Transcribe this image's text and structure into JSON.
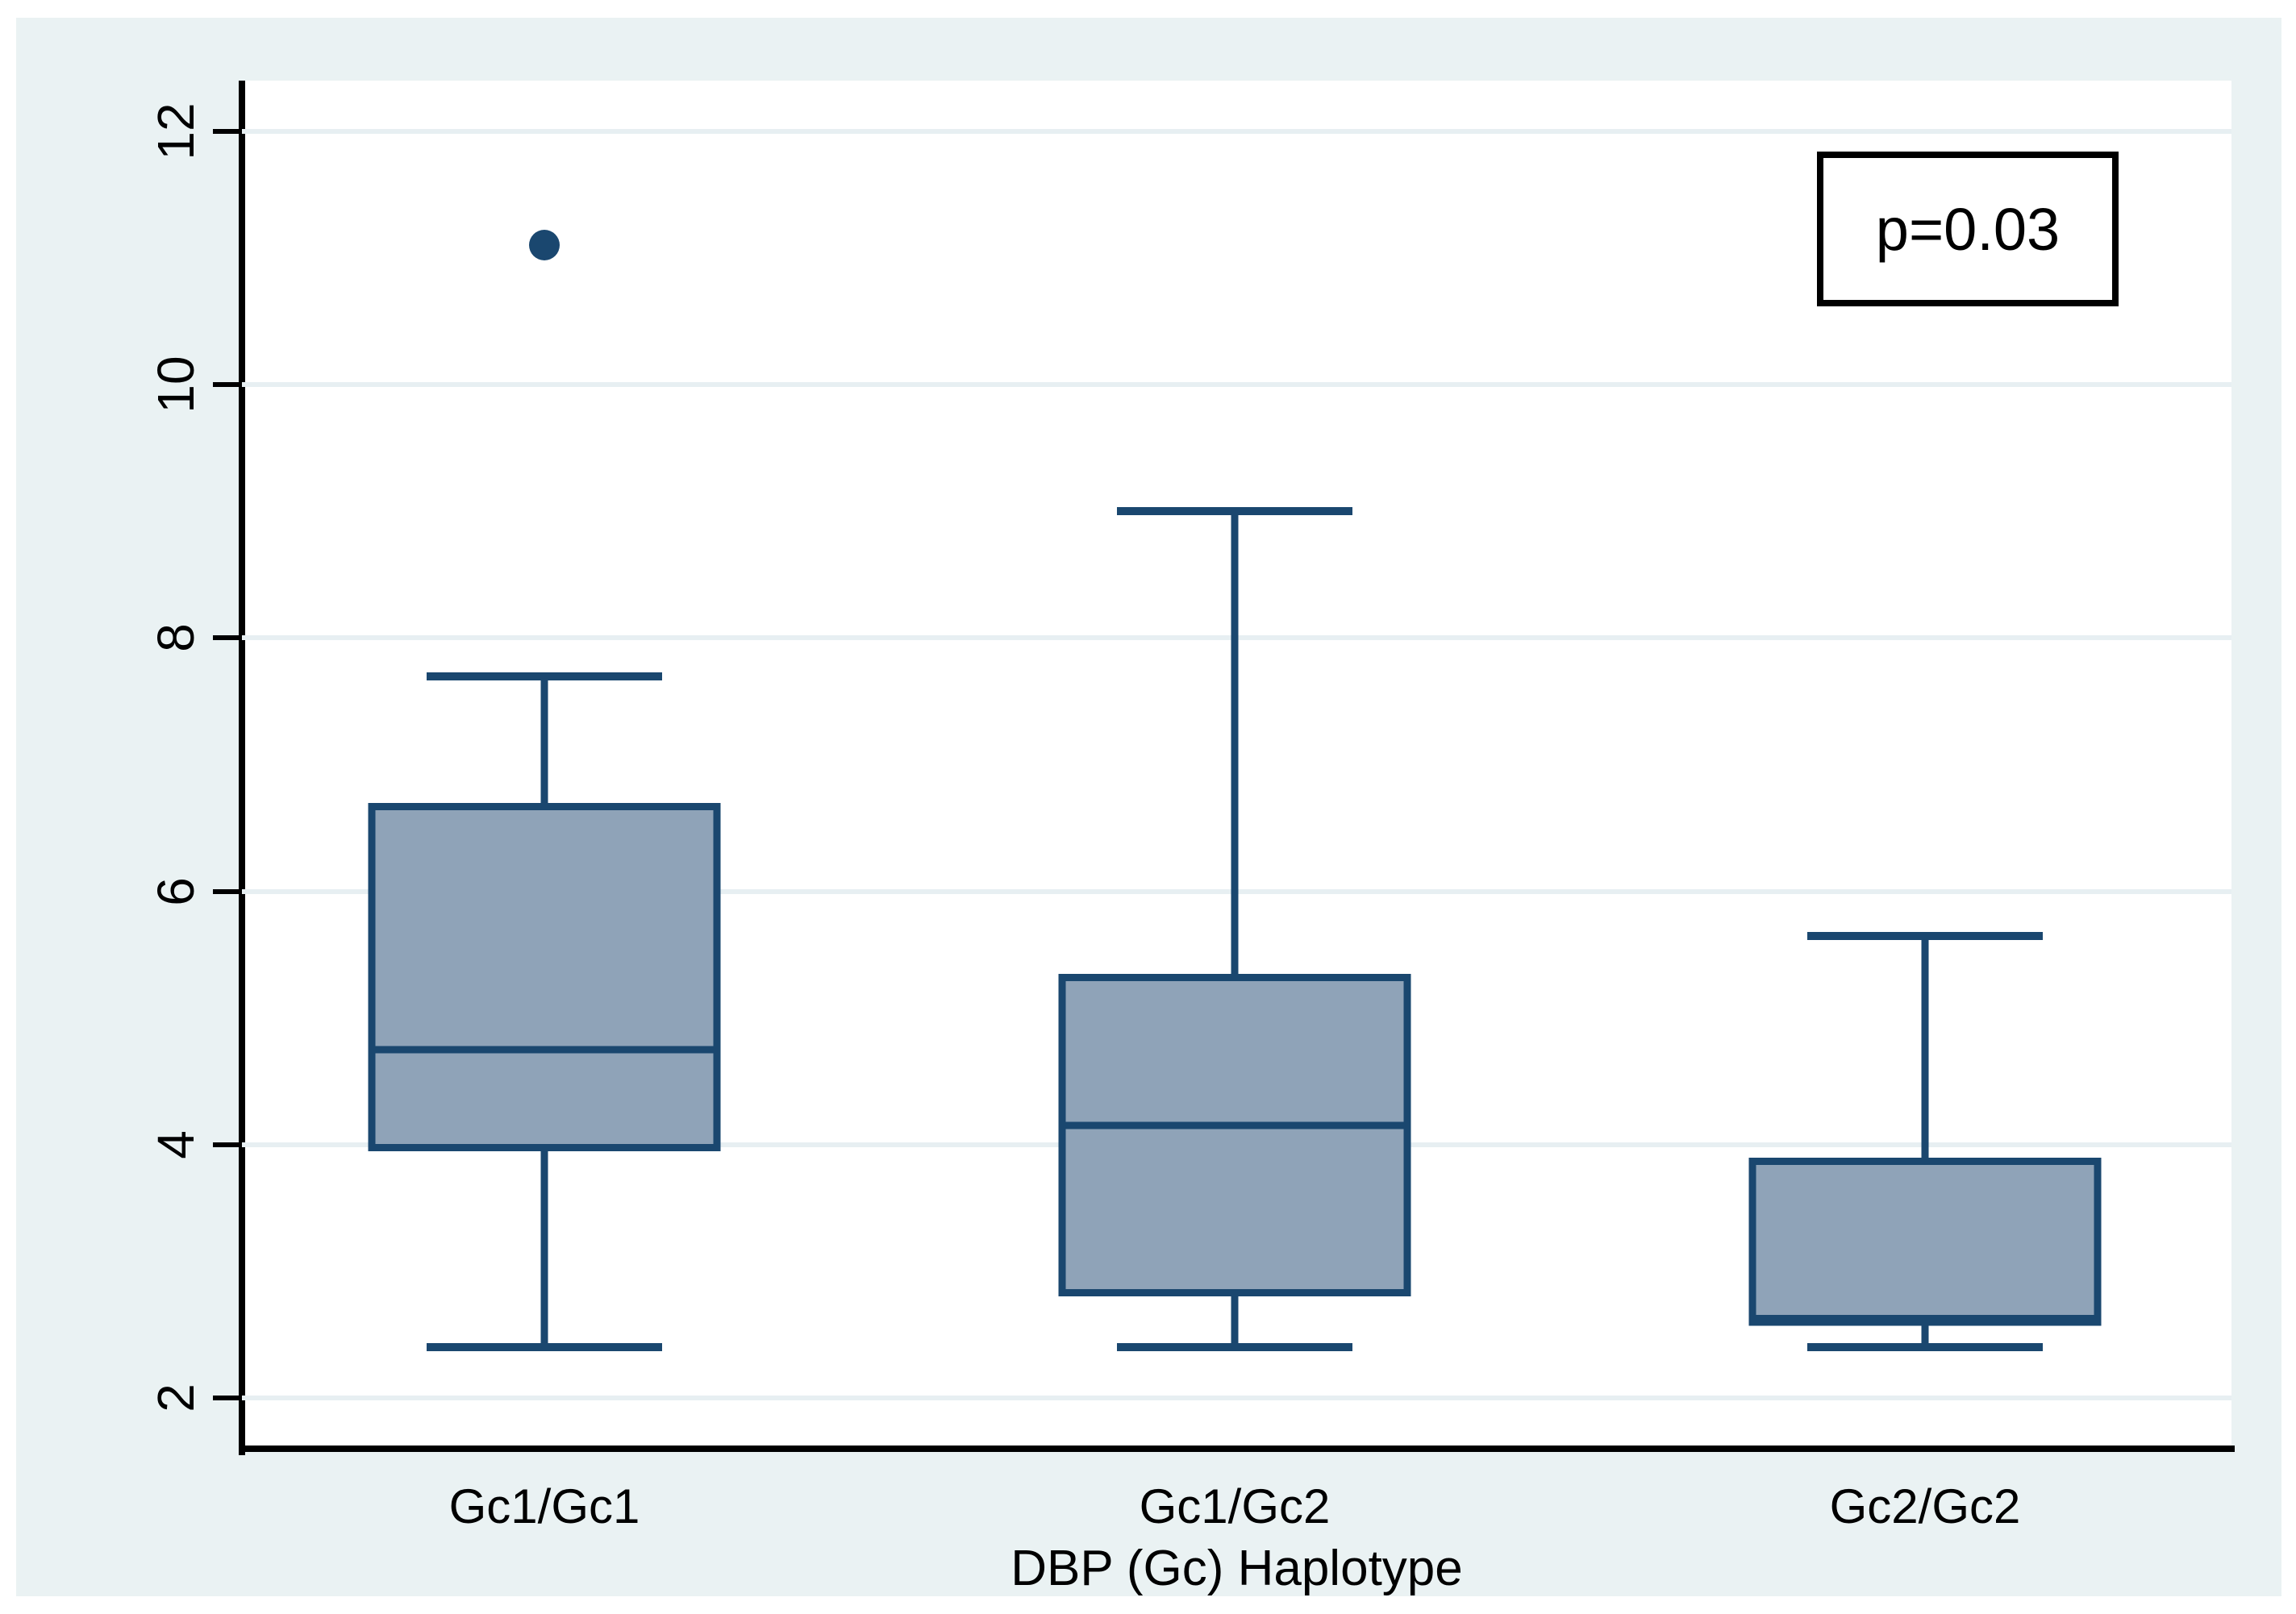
{
  "figure": {
    "annotation_label": "p=0.03",
    "x_axis_title": "DBP (Gc) Haplotype"
  },
  "chart_data": {
    "type": "box",
    "title": "",
    "xlabel": "DBP (Gc) Haplotype",
    "ylabel": "",
    "categories": [
      "Gc1/Gc1",
      "Gc1/Gc2",
      "Gc2/Gc2"
    ],
    "y_ticks": [
      2,
      4,
      6,
      8,
      10,
      12
    ],
    "ylim": [
      1.6,
      12.4
    ],
    "grid": true,
    "legend_position": "none",
    "annotation": "p=0.03",
    "series": [
      {
        "name": "Gc1/Gc1",
        "whisker_low": 2.4,
        "q1": 3.95,
        "median": 4.75,
        "q3": 6.7,
        "whisker_high": 7.7,
        "outliers": [
          11.1
        ]
      },
      {
        "name": "Gc1/Gc2",
        "whisker_low": 2.4,
        "q1": 2.8,
        "median": 4.15,
        "q3": 5.35,
        "whisker_high": 9.0,
        "outliers": []
      },
      {
        "name": "Gc2/Gc2",
        "whisker_low": 2.4,
        "q1": 2.6,
        "median": 2.6,
        "q3": 3.9,
        "whisker_high": 5.65,
        "outliers": []
      }
    ]
  },
  "colors": {
    "panel_bg": "#EAF2F3",
    "plot_bg": "#FFFFFF",
    "grid_line": "#E7EFF2",
    "axis_line": "#000000",
    "text": "#000000",
    "box_line": "#1A476F",
    "box_fill": "#8FA3B8",
    "outlier": "#1A476F"
  }
}
